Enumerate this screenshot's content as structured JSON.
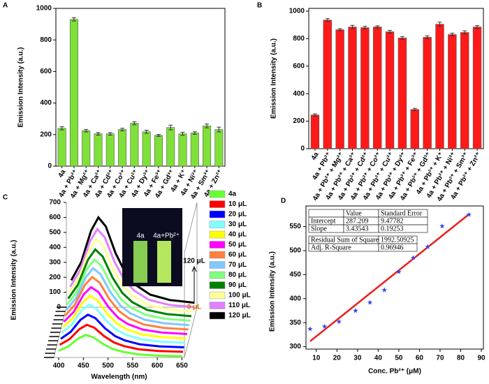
{
  "chart_data": [
    {
      "type": "bar",
      "panel": "A",
      "ylabel": "Emission Intensity (a.u.)",
      "categories": [
        "4a",
        "4a + Pb²⁺",
        "4a + Mg²⁺",
        "4a + Ca²⁺",
        "4a + Cd²⁺",
        "4a + Co²⁺",
        "4a + Cu²⁺",
        "4a + Dy³⁺",
        "4a + Fe³⁺",
        "4a + Gd³⁺",
        "4a + K⁺",
        "4a + Ni²⁺",
        "4a + Sm³⁺",
        "4a + Zn²⁺"
      ],
      "values": [
        240,
        930,
        225,
        205,
        205,
        232,
        272,
        218,
        195,
        245,
        205,
        210,
        255,
        232
      ],
      "errors": [
        10,
        10,
        8,
        8,
        8,
        8,
        10,
        10,
        6,
        15,
        10,
        8,
        12,
        15
      ],
      "color": "#7fe03a",
      "ylim": [
        0,
        1000
      ],
      "yticks": [
        0,
        200,
        400,
        600,
        800,
        1000
      ]
    },
    {
      "type": "bar",
      "panel": "B",
      "ylabel": "Emission Intensity (a.u.)",
      "categories": [
        "4a",
        "4a + Pb²⁺",
        "4a + Pb²⁺ + Mg²⁺",
        "4a + Pb²⁺ + Ca²⁺",
        "4a + Pb²⁺ + Cd²⁺",
        "4a + Pb²⁺ + Co²⁺",
        "4a + Pb²⁺ + Cu²⁺",
        "4a + Pb²⁺ + Dy³⁺",
        "4a + Pb²⁺ + Fe³⁺",
        "4a + Pb²⁺ + Gd³⁺",
        "4a + Pb²⁺ + K⁺",
        "4a + Pb²⁺ + Ni²⁺",
        "4a + Pb²⁺ + Sm³⁺",
        "4a + Pb²⁺ + Zn²⁺"
      ],
      "values": [
        245,
        935,
        865,
        885,
        880,
        885,
        850,
        805,
        285,
        810,
        905,
        830,
        845,
        885
      ],
      "errors": [
        8,
        10,
        8,
        12,
        10,
        8,
        10,
        10,
        8,
        10,
        15,
        10,
        12,
        10
      ],
      "color": "#ff1a1a",
      "ylim": [
        0,
        1020
      ],
      "yticks": [
        0,
        200,
        400,
        600,
        800,
        1000
      ]
    },
    {
      "type": "line",
      "panel": "C",
      "ylabel": "Emission Intensity (a.u.)",
      "xlabel": "Wavelength (nm)",
      "xlim": [
        390,
        655
      ],
      "xticks": [
        400,
        450,
        500,
        550,
        600,
        650
      ],
      "ylim": [
        0,
        700
      ],
      "yticks": [
        0,
        100,
        200,
        300,
        400,
        500,
        600,
        700
      ],
      "x": [
        400,
        420,
        440,
        455,
        470,
        490,
        510,
        530,
        560,
        600,
        650
      ],
      "series": [
        {
          "name": "4a",
          "color": "#66ff33",
          "values": [
            45,
            75,
            128,
            150,
            135,
            90,
            57,
            38,
            21,
            12,
            8
          ]
        },
        {
          "name": "10 μL",
          "color": "#ff0000",
          "values": [
            57,
            95,
            162,
            190,
            171,
            114,
            72,
            48,
            27,
            15,
            10
          ]
        },
        {
          "name": "20 μL",
          "color": "#0000ff",
          "values": [
            69,
            115,
            196,
            230,
            207,
            138,
            87,
            58,
            32,
            18,
            12
          ]
        },
        {
          "name": "30 μL",
          "color": "#80ffff",
          "values": [
            81,
            135,
            230,
            270,
            243,
            162,
            103,
            68,
            38,
            22,
            14
          ]
        },
        {
          "name": "40 μL",
          "color": "#ffff00",
          "values": [
            90,
            150,
            255,
            300,
            270,
            180,
            114,
            75,
            42,
            24,
            15
          ]
        },
        {
          "name": "50 μL",
          "color": "#ff00ff",
          "values": [
            99,
            165,
            281,
            330,
            297,
            198,
            125,
            83,
            46,
            26,
            17
          ]
        },
        {
          "name": "60 μL",
          "color": "#ff8040",
          "values": [
            111,
            185,
            315,
            370,
            333,
            222,
            141,
            93,
            52,
            30,
            19
          ]
        },
        {
          "name": "70 μL",
          "color": "#80c8ff",
          "values": [
            120,
            200,
            340,
            400,
            360,
            240,
            152,
            100,
            56,
            32,
            20
          ]
        },
        {
          "name": "80 μL",
          "color": "#80ff80",
          "values": [
            129,
            215,
            366,
            430,
            387,
            258,
            163,
            108,
            60,
            34,
            22
          ]
        },
        {
          "name": "90 μL",
          "color": "#008000",
          "values": [
            141,
            235,
            400,
            470,
            423,
            282,
            179,
            118,
            66,
            38,
            24
          ]
        },
        {
          "name": "100 μL",
          "color": "#ffff99",
          "values": [
            153,
            255,
            434,
            510,
            459,
            306,
            194,
            128,
            71,
            41,
            26
          ]
        },
        {
          "name": "110 μL",
          "color": "#e080ff",
          "values": [
            165,
            275,
            468,
            550,
            495,
            330,
            209,
            138,
            77,
            44,
            28
          ]
        },
        {
          "name": "120 μL",
          "color": "#000000",
          "values": [
            180,
            300,
            510,
            600,
            540,
            360,
            228,
            150,
            84,
            48,
            30
          ]
        }
      ],
      "inset": {
        "left": "4a",
        "right": "4a+Pb²⁺",
        "top": "120 μL",
        "bottom": "0 μL"
      }
    },
    {
      "type": "scatter",
      "panel": "D",
      "ylabel": "Emission Intensity (a.u.)",
      "xlabel": "Conc. Pb²⁺ (μM)",
      "xlim": [
        5,
        91
      ],
      "xticks": [
        10,
        20,
        30,
        40,
        50,
        60,
        70,
        80,
        90
      ],
      "ylim": [
        295,
        593
      ],
      "yticks": [
        300,
        350,
        400,
        450,
        500,
        550
      ],
      "x": [
        7,
        14,
        21,
        29,
        36,
        43,
        50,
        57,
        64,
        71,
        84
      ],
      "y": [
        337,
        342,
        352,
        375,
        392,
        418,
        456,
        485,
        508,
        551,
        575
      ],
      "color": "#3344ee",
      "line_color": "#e8201c",
      "fit_table": {
        "headers": [
          "Value",
          "Standard Error"
        ],
        "rows": [
          [
            "Intercept",
            287.209,
            9.47782
          ],
          [
            "Slope",
            3.43543,
            0.19253
          ]
        ],
        "stats": [
          [
            "Residual Sum of Squares",
            1992.50925
          ],
          [
            "Adj. R-Square",
            0.96946
          ]
        ]
      }
    }
  ]
}
